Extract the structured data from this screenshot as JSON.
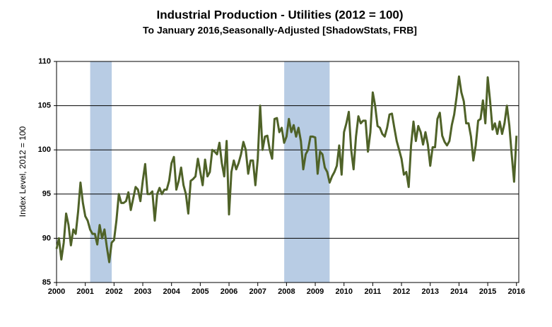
{
  "chart_data": {
    "type": "line",
    "title": "Industrial Production - Utilities (2012 = 100)",
    "subtitle": "To January 2016,Seasonally-Adjusted [ShadowStats, FRB]",
    "y_label": "Index Level, 2012 = 100",
    "x": [
      2000,
      2000.083,
      2000.167,
      2000.25,
      2000.333,
      2000.417,
      2000.5,
      2000.583,
      2000.667,
      2000.75,
      2000.833,
      2000.917,
      2001,
      2001.083,
      2001.167,
      2001.25,
      2001.333,
      2001.417,
      2001.5,
      2001.583,
      2001.667,
      2001.75,
      2001.833,
      2001.917,
      2002,
      2002.083,
      2002.167,
      2002.25,
      2002.333,
      2002.417,
      2002.5,
      2002.583,
      2002.667,
      2002.75,
      2002.833,
      2002.917,
      2003,
      2003.083,
      2003.167,
      2003.25,
      2003.333,
      2003.417,
      2003.5,
      2003.583,
      2003.667,
      2003.75,
      2003.833,
      2003.917,
      2004,
      2004.083,
      2004.167,
      2004.25,
      2004.333,
      2004.417,
      2004.5,
      2004.583,
      2004.667,
      2004.75,
      2004.833,
      2004.917,
      2005,
      2005.083,
      2005.167,
      2005.25,
      2005.333,
      2005.417,
      2005.5,
      2005.583,
      2005.667,
      2005.75,
      2005.833,
      2005.917,
      2006,
      2006.083,
      2006.167,
      2006.25,
      2006.333,
      2006.417,
      2006.5,
      2006.583,
      2006.667,
      2006.75,
      2006.833,
      2006.917,
      2007,
      2007.083,
      2007.167,
      2007.25,
      2007.333,
      2007.417,
      2007.5,
      2007.583,
      2007.667,
      2007.75,
      2007.833,
      2007.917,
      2008,
      2008.083,
      2008.167,
      2008.25,
      2008.333,
      2008.417,
      2008.5,
      2008.583,
      2008.667,
      2008.75,
      2008.833,
      2008.917,
      2009,
      2009.083,
      2009.167,
      2009.25,
      2009.333,
      2009.417,
      2009.5,
      2009.583,
      2009.667,
      2009.75,
      2009.833,
      2009.917,
      2010,
      2010.083,
      2010.167,
      2010.25,
      2010.333,
      2010.417,
      2010.5,
      2010.583,
      2010.667,
      2010.75,
      2010.833,
      2010.917,
      2011,
      2011.083,
      2011.167,
      2011.25,
      2011.333,
      2011.417,
      2011.5,
      2011.583,
      2011.667,
      2011.75,
      2011.833,
      2011.917,
      2012,
      2012.083,
      2012.167,
      2012.25,
      2012.333,
      2012.417,
      2012.5,
      2012.583,
      2012.667,
      2012.75,
      2012.833,
      2012.917,
      2013,
      2013.083,
      2013.167,
      2013.25,
      2013.333,
      2013.417,
      2013.5,
      2013.583,
      2013.667,
      2013.75,
      2013.833,
      2013.917,
      2014,
      2014.083,
      2014.167,
      2014.25,
      2014.333,
      2014.417,
      2014.5,
      2014.583,
      2014.667,
      2014.75,
      2014.833,
      2014.917,
      2015,
      2015.083,
      2015.167,
      2015.25,
      2015.333,
      2015.417,
      2015.5,
      2015.583,
      2015.667,
      2015.75,
      2015.833,
      2015.917,
      2016
    ],
    "series": [
      {
        "name": "Industrial Production - Utilities",
        "color": "#4f6228",
        "values": [
          88.8,
          90,
          87.6,
          89.5,
          92.8,
          91.5,
          89.2,
          91,
          90.5,
          93,
          96.3,
          94,
          92.5,
          92,
          91,
          90.5,
          90.5,
          89.3,
          91.5,
          90,
          91,
          89,
          87.3,
          89.5,
          89.8,
          92,
          95,
          94,
          94,
          94.2,
          95.2,
          93.2,
          94.5,
          95.8,
          95.5,
          94.2,
          96.5,
          98.4,
          95,
          95,
          95.3,
          92,
          95,
          95.7,
          95,
          95.5,
          95.5,
          96.5,
          98.5,
          99.2,
          95.5,
          96.5,
          98,
          96,
          95,
          92.8,
          96.5,
          96.7,
          97,
          99,
          97.5,
          96,
          98.9,
          97,
          97.5,
          100,
          99.8,
          99.5,
          100.8,
          98.5,
          97,
          101,
          92.7,
          97.5,
          98.8,
          97.8,
          98.5,
          99.5,
          100.9,
          100,
          97.3,
          98.8,
          98.8,
          96,
          99,
          105,
          100,
          101.5,
          101.6,
          100,
          99,
          103.5,
          103.6,
          102,
          102.5,
          100.8,
          101.5,
          103.5,
          102,
          102.8,
          101.5,
          102.5,
          101,
          97.8,
          99.5,
          100,
          101.5,
          101.5,
          101.4,
          97.3,
          99.8,
          99.5,
          98,
          97.5,
          96.3,
          97,
          97.5,
          98.2,
          100.5,
          97.2,
          102,
          103,
          104.3,
          100,
          97.8,
          101.5,
          103.8,
          103,
          103.3,
          103.3,
          99.8,
          102,
          106.5,
          105,
          102.7,
          102.5,
          101.8,
          101.5,
          102.5,
          104,
          104.1,
          102.5,
          101,
          100,
          99,
          97.2,
          97.5,
          95.8,
          100.5,
          103.2,
          101,
          102.7,
          102,
          100.6,
          102,
          100.6,
          98.2,
          100.3,
          100.3,
          103.5,
          104.2,
          101.6,
          100.9,
          100.5,
          101,
          102.8,
          104,
          106,
          108.3,
          106.5,
          105.5,
          103,
          103,
          101.5,
          98.8,
          100.5,
          103.3,
          103.5,
          105.6,
          103,
          108.2,
          105.5,
          102.3,
          103,
          101.8,
          103.2,
          101.8,
          103,
          105,
          102.8,
          99.5,
          96.4,
          101.6
        ]
      }
    ],
    "shaded_periods": [
      [
        2001.17,
        2001.92
      ],
      [
        2007.92,
        2009.5
      ]
    ],
    "shade_color": "#b8cce4",
    "xlim": [
      2000,
      2016.08
    ],
    "xticks": [
      2000,
      2001,
      2002,
      2003,
      2004,
      2005,
      2006,
      2007,
      2008,
      2009,
      2010,
      2011,
      2012,
      2013,
      2014,
      2015,
      2016
    ],
    "ylim": [
      85,
      110
    ],
    "yticks": [
      85,
      90,
      95,
      100,
      105,
      110
    ],
    "grid": true
  }
}
